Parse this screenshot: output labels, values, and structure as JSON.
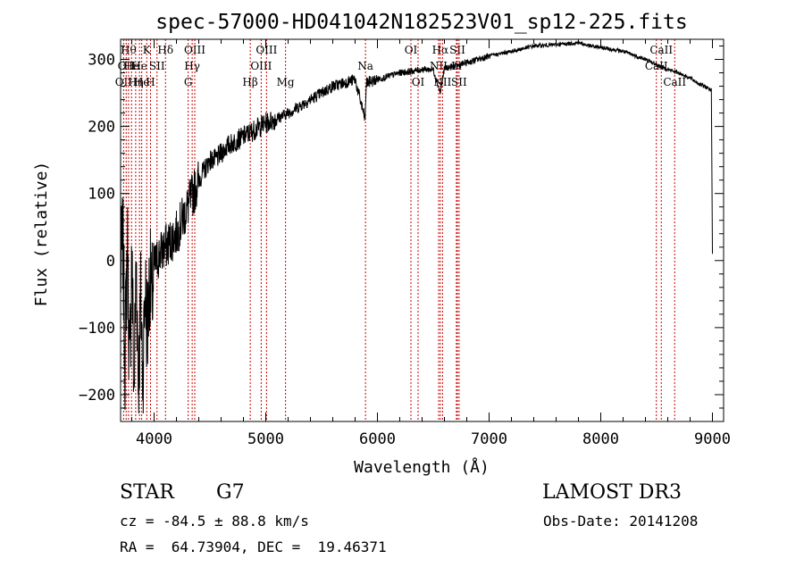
{
  "chart_data": {
    "type": "line",
    "title": "spec-57000-HD041042N182523V01_sp12-225.fits",
    "xlabel": "Wavelength (Å)",
    "ylabel": "Flux (relative)",
    "xlim": [
      3700,
      9100
    ],
    "ylim": [
      -240,
      330
    ],
    "x_ticks": [
      {
        "value": 4000,
        "label": "4000"
      },
      {
        "value": 5000,
        "label": "5000"
      },
      {
        "value": 6000,
        "label": "6000"
      },
      {
        "value": 7000,
        "label": "7000"
      },
      {
        "value": 8000,
        "label": "8000"
      },
      {
        "value": 9000,
        "label": "9000"
      }
    ],
    "y_ticks": [
      {
        "value": -200,
        "label": "−200"
      },
      {
        "value": -100,
        "label": "−100"
      },
      {
        "value": 0,
        "label": "0"
      },
      {
        "value": 100,
        "label": "100"
      },
      {
        "value": 200,
        "label": "200"
      },
      {
        "value": 300,
        "label": "300"
      }
    ],
    "line_color": "#000000",
    "marker_color": "#cc0000",
    "series": [
      {
        "x": [
          3700,
          3720,
          3740,
          3760,
          3780,
          3800,
          3820,
          3840,
          3860,
          3880,
          3900,
          3920,
          3940,
          3960,
          3980,
          4000,
          4050,
          4100,
          4150,
          4200,
          4250,
          4300,
          4350,
          4400,
          4450,
          4500,
          4550,
          4600,
          4650,
          4700,
          4750,
          4800,
          4850,
          4900,
          4950,
          5000,
          5100,
          5200,
          5300,
          5400,
          5500,
          5600,
          5700,
          5800,
          5890,
          5900,
          6000,
          6100,
          6200,
          6300,
          6400,
          6500,
          6563,
          6600,
          6700,
          6800,
          6900,
          7000,
          7200,
          7400,
          7600,
          7800,
          7900,
          8000,
          8200,
          8400,
          8500,
          8600,
          8700,
          8800,
          8900,
          8990,
          9000
        ],
        "y": [
          -20,
          30,
          -150,
          40,
          -180,
          20,
          -200,
          10,
          -190,
          -60,
          -170,
          -40,
          -110,
          -20,
          -60,
          -10,
          10,
          20,
          30,
          40,
          60,
          80,
          100,
          120,
          135,
          150,
          150,
          160,
          170,
          175,
          180,
          185,
          190,
          195,
          200,
          205,
          212,
          220,
          230,
          240,
          250,
          260,
          265,
          270,
          210,
          265,
          270,
          275,
          280,
          282,
          285,
          285,
          250,
          287,
          290,
          295,
          300,
          305,
          312,
          320,
          322,
          325,
          320,
          318,
          312,
          300,
          292,
          285,
          280,
          272,
          262,
          255,
          10
        ]
      }
    ],
    "line_markers": [
      {
        "x": 3727,
        "row": 2,
        "label": "OII"
      },
      {
        "x": 3750,
        "row": 1,
        "label": "OII"
      },
      {
        "x": 3771,
        "row": 0,
        "label": "Hθ"
      },
      {
        "x": 3798,
        "row": 1,
        "label": "He"
      },
      {
        "x": 3835,
        "row": 2,
        "label": "Hη"
      },
      {
        "x": 3869,
        "row": 1,
        "label": "He"
      },
      {
        "x": 3889,
        "row": 2,
        "label": "He"
      },
      {
        "x": 3934,
        "row": 0,
        "label": "K"
      },
      {
        "x": 3968,
        "row": 2,
        "label": "H"
      },
      {
        "x": 4026,
        "row": 1,
        "label": "SII"
      },
      {
        "x": 4102,
        "row": 0,
        "label": "Hδ"
      },
      {
        "x": 4305,
        "row": 2,
        "label": "G"
      },
      {
        "x": 4341,
        "row": 1,
        "label": "Hγ"
      },
      {
        "x": 4364,
        "row": 0,
        "label": "OIII"
      },
      {
        "x": 4861,
        "row": 2,
        "label": "Hβ"
      },
      {
        "x": 4959,
        "row": 1,
        "label": "OIII"
      },
      {
        "x": 5007,
        "row": 0,
        "label": "OIII"
      },
      {
        "x": 5177,
        "row": 2,
        "label": "Mg"
      },
      {
        "x": 5893,
        "row": 1,
        "label": "Na"
      },
      {
        "x": 6300,
        "row": 0,
        "label": "OI"
      },
      {
        "x": 6364,
        "row": 2,
        "label": "OI"
      },
      {
        "x": 6548,
        "row": 1,
        "label": "NII"
      },
      {
        "x": 6563,
        "row": 0,
        "label": "Hα"
      },
      {
        "x": 6583,
        "row": 2,
        "label": "NII"
      },
      {
        "x": 6707,
        "row": 1,
        "label": "Li"
      },
      {
        "x": 6716,
        "row": 0,
        "label": "SII"
      },
      {
        "x": 6731,
        "row": 2,
        "label": "SII"
      },
      {
        "x": 8498,
        "row": 1,
        "label": "CaII"
      },
      {
        "x": 8542,
        "row": 0,
        "label": "CaII"
      },
      {
        "x": 8662,
        "row": 2,
        "label": "CaII"
      }
    ]
  },
  "info": {
    "object_class": "STAR",
    "subclass": "G7",
    "survey": "LAMOST DR3",
    "redshift": "cz = -84.5 ± 88.8 km/s",
    "obs_date": "Obs-Date: 20141208",
    "coords": "RA =  64.73904, DEC =  19.46371"
  }
}
